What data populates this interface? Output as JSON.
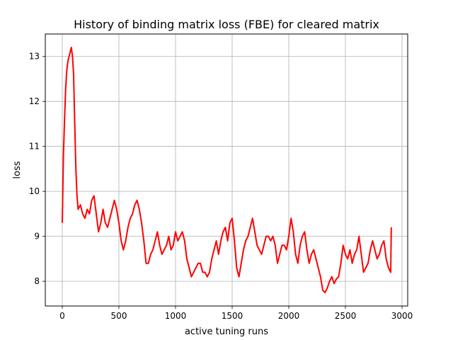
{
  "chart_data": {
    "type": "line",
    "title": "History of binding matrix loss (FBE) for cleared matrix",
    "xlabel": "active tuning runs",
    "ylabel": "loss",
    "xlim": [
      -150,
      3050
    ],
    "ylim": [
      7.45,
      13.5
    ],
    "xticks": [
      0,
      500,
      1000,
      1500,
      2000,
      2500,
      3000
    ],
    "xtick_labels": [
      "0",
      "500",
      "1000",
      "1500",
      "2000",
      "2500",
      "3000"
    ],
    "yticks": [
      8,
      9,
      10,
      11,
      12,
      13
    ],
    "ytick_labels": [
      "8",
      "9",
      "10",
      "11",
      "12",
      "13"
    ],
    "grid": true,
    "line_color": "#ff0000",
    "series": [
      {
        "x": [
          0,
          10,
          20,
          30,
          40,
          50,
          60,
          70,
          80,
          90,
          100,
          110,
          120,
          130,
          140,
          160,
          180,
          200,
          220,
          240,
          260,
          280,
          300,
          320,
          340,
          360,
          380,
          400,
          420,
          440,
          460,
          480,
          500,
          520,
          540,
          560,
          580,
          600,
          620,
          640,
          660,
          680,
          700,
          720,
          740,
          760,
          780,
          800,
          820,
          840,
          860,
          880,
          900,
          920,
          940,
          960,
          980,
          1000,
          1020,
          1040,
          1060,
          1080,
          1100,
          1120,
          1140,
          1160,
          1180,
          1200,
          1220,
          1240,
          1260,
          1280,
          1300,
          1320,
          1340,
          1360,
          1380,
          1400,
          1420,
          1440,
          1460,
          1480,
          1500,
          1520,
          1540,
          1560,
          1580,
          1600,
          1620,
          1640,
          1660,
          1680,
          1700,
          1720,
          1740,
          1760,
          1780,
          1800,
          1820,
          1840,
          1860,
          1880,
          1900,
          1920,
          1940,
          1960,
          1980,
          2000,
          2020,
          2040,
          2060,
          2080,
          2100,
          2120,
          2140,
          2160,
          2180,
          2200,
          2220,
          2240,
          2260,
          2280,
          2300,
          2320,
          2340,
          2360,
          2380,
          2400,
          2420,
          2440,
          2460,
          2480,
          2500,
          2520,
          2540,
          2560,
          2580,
          2600,
          2620,
          2640,
          2660,
          2680,
          2700,
          2720,
          2740,
          2760,
          2780,
          2800,
          2820,
          2840,
          2860,
          2880,
          2900,
          2905
        ],
        "values": [
          9.3,
          10.8,
          11.6,
          12.3,
          12.7,
          12.9,
          13.0,
          13.1,
          13.2,
          13.0,
          12.6,
          11.5,
          10.5,
          9.9,
          9.6,
          9.7,
          9.5,
          9.4,
          9.6,
          9.5,
          9.8,
          9.9,
          9.5,
          9.1,
          9.3,
          9.6,
          9.3,
          9.2,
          9.4,
          9.6,
          9.8,
          9.6,
          9.3,
          8.9,
          8.7,
          8.9,
          9.2,
          9.4,
          9.5,
          9.7,
          9.8,
          9.6,
          9.3,
          8.9,
          8.4,
          8.4,
          8.6,
          8.7,
          8.9,
          9.1,
          8.8,
          8.6,
          8.7,
          8.8,
          9.0,
          8.7,
          8.8,
          9.1,
          8.9,
          9.0,
          9.1,
          8.9,
          8.5,
          8.3,
          8.1,
          8.2,
          8.3,
          8.4,
          8.4,
          8.2,
          8.2,
          8.1,
          8.2,
          8.5,
          8.7,
          8.9,
          8.6,
          8.9,
          9.1,
          9.2,
          8.9,
          9.3,
          9.4,
          8.9,
          8.3,
          8.1,
          8.4,
          8.7,
          8.9,
          9.0,
          9.2,
          9.4,
          9.1,
          8.8,
          8.7,
          8.6,
          8.8,
          9.0,
          9.0,
          8.9,
          9.0,
          8.8,
          8.4,
          8.6,
          8.8,
          8.8,
          8.7,
          9.0,
          9.4,
          9.1,
          8.6,
          8.4,
          8.8,
          9.0,
          9.1,
          8.7,
          8.4,
          8.6,
          8.7,
          8.5,
          8.3,
          8.1,
          7.8,
          7.75,
          7.85,
          8.0,
          8.1,
          7.95,
          8.05,
          8.1,
          8.4,
          8.8,
          8.6,
          8.5,
          8.7,
          8.4,
          8.6,
          8.7,
          9.0,
          8.6,
          8.2,
          8.3,
          8.4,
          8.7,
          8.9,
          8.7,
          8.5,
          8.6,
          8.8,
          8.9,
          8.5,
          8.3,
          8.2,
          9.2
        ]
      }
    ]
  }
}
